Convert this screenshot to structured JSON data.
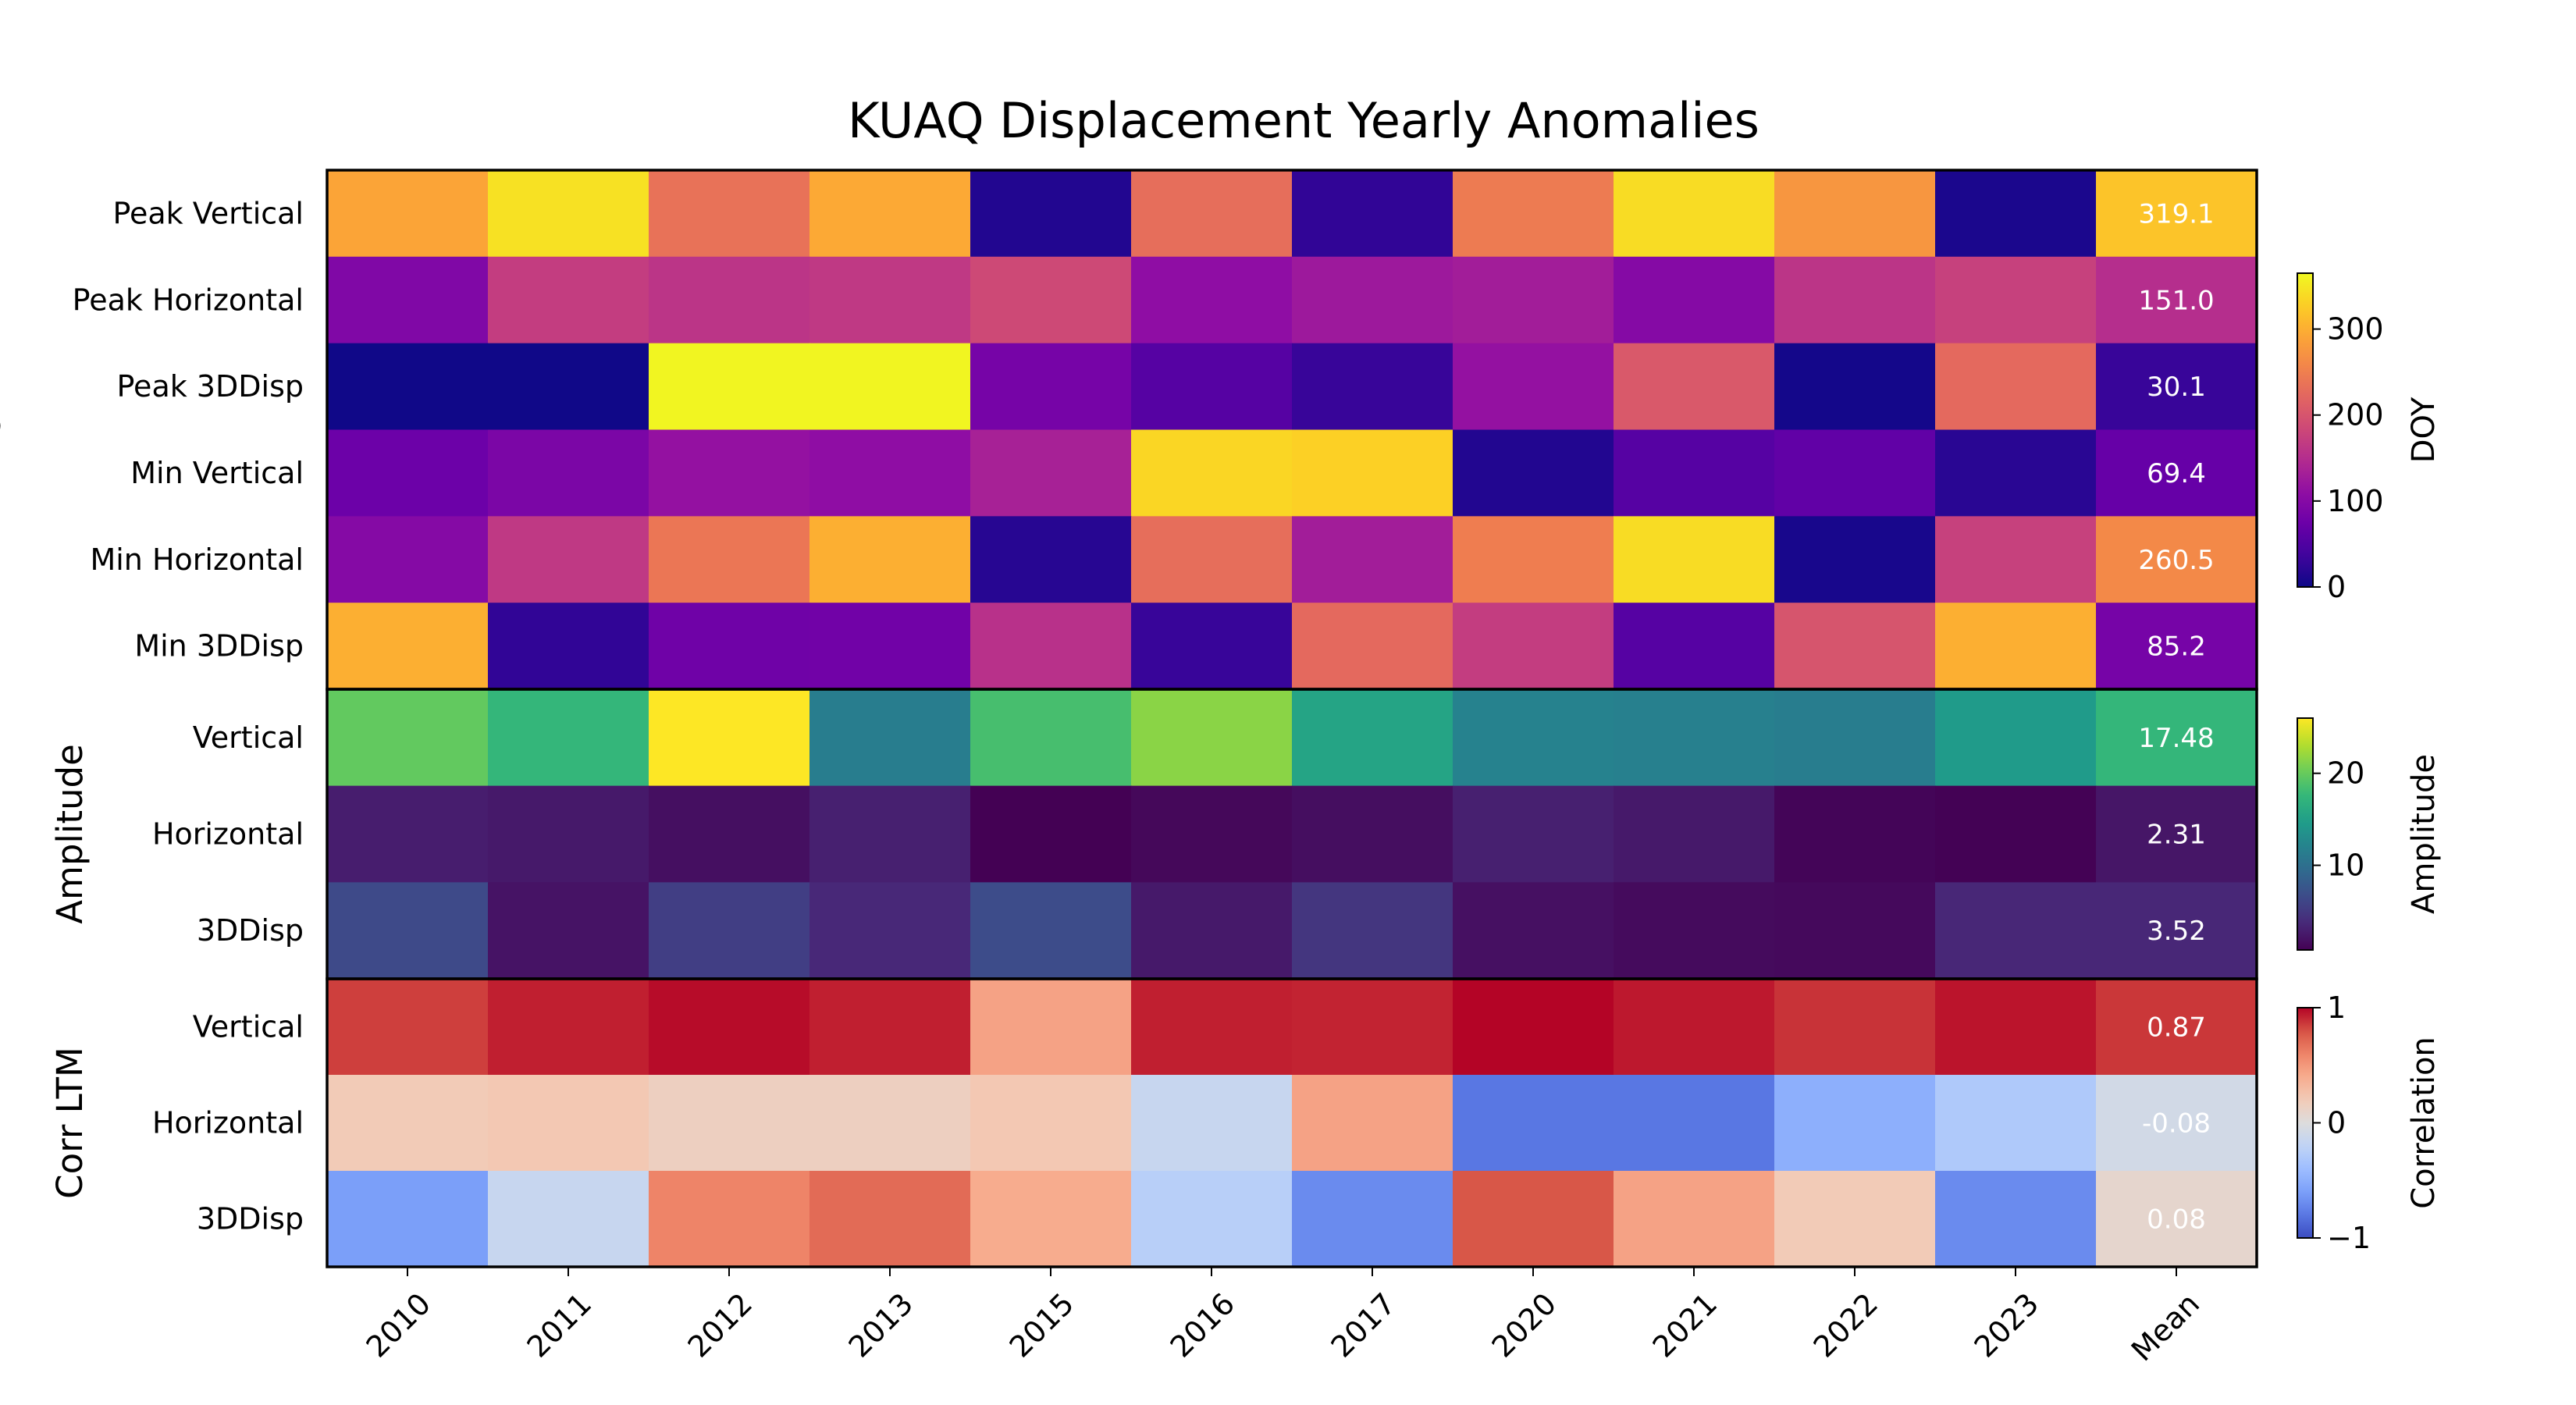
{
  "chart_data": {
    "type": "heatmap",
    "title": "KUAQ Displacement Yearly Anomalies",
    "columns": [
      "2010",
      "2011",
      "2012",
      "2013",
      "2015",
      "2016",
      "2017",
      "2020",
      "2021",
      "2022",
      "2023",
      "Mean"
    ],
    "panels": [
      {
        "group_label": "DOY",
        "colorbar_label": "DOY",
        "colormap": "plasma",
        "vmin": 0,
        "vmax": 365,
        "colorbar_ticks": [
          0,
          100,
          200,
          300
        ],
        "rows": [
          {
            "label": "Peak Vertical",
            "values": [
              290,
              345,
              235,
              295,
              15,
              230,
              25,
              245,
              340,
              275,
              10,
              319.1
            ],
            "mean_label": "319.1"
          },
          {
            "label": "Peak Horizontal",
            "values": [
              95,
              170,
              160,
              165,
              185,
              110,
              125,
              130,
              100,
              160,
              175,
              151.0
            ],
            "mean_label": "151.0"
          },
          {
            "label": "Peak 3DDisp",
            "values": [
              2,
              2,
              362,
              362,
              85,
              55,
              30,
              115,
              205,
              5,
              225,
              30.1
            ],
            "mean_label": "30.1"
          },
          {
            "label": "Min Vertical",
            "values": [
              75,
              90,
              115,
              110,
              135,
              335,
              330,
              15,
              55,
              65,
              20,
              69.4
            ],
            "mean_label": "69.4"
          },
          {
            "label": "Min Horizontal",
            "values": [
              100,
              165,
              240,
              300,
              18,
              230,
              130,
              248,
              340,
              8,
              175,
              260.5
            ],
            "mean_label": "260.5"
          },
          {
            "label": "Min 3DDisp",
            "values": [
              300,
              25,
              78,
              80,
              155,
              30,
              225,
              170,
              55,
              200,
              300,
              85.2
            ],
            "mean_label": "85.2"
          }
        ]
      },
      {
        "group_label": "Amplitude",
        "colorbar_label": "Amplitude",
        "colormap": "viridis",
        "vmin": 0.8,
        "vmax": 26,
        "colorbar_ticks": [
          10,
          20
        ],
        "rows": [
          {
            "label": "Vertical",
            "values": [
              19.8,
              17.5,
              26.0,
              11.5,
              18.5,
              21.5,
              15.5,
              12.0,
              11.8,
              11.5,
              14.5,
              17.48
            ],
            "mean_label": "17.48"
          },
          {
            "label": "Horizontal",
            "values": [
              2.8,
              2.5,
              1.8,
              3.0,
              0.8,
              1.3,
              1.7,
              3.0,
              2.5,
              1.1,
              0.9,
              2.31
            ],
            "mean_label": "2.31"
          },
          {
            "label": "3DDisp",
            "values": [
              6.5,
              2.1,
              5.5,
              3.6,
              6.7,
              2.5,
              4.8,
              1.9,
              1.5,
              1.4,
              3.5,
              3.52
            ],
            "mean_label": "3.52"
          }
        ]
      },
      {
        "group_label": "Corr LTM",
        "colorbar_label": "Correlation",
        "colormap": "coolwarm",
        "vmin": -1,
        "vmax": 1,
        "colorbar_ticks": [
          -1,
          0,
          1
        ],
        "rows": [
          {
            "label": "Vertical",
            "values": [
              0.85,
              0.93,
              0.98,
              0.93,
              0.45,
              0.93,
              0.92,
              1.0,
              0.95,
              0.88,
              0.96,
              0.87
            ],
            "mean_label": "0.87"
          },
          {
            "label": "Horizontal",
            "values": [
              0.2,
              0.22,
              0.15,
              0.15,
              0.22,
              -0.15,
              0.45,
              -0.8,
              -0.8,
              -0.5,
              -0.3,
              -0.08
            ],
            "mean_label": "-0.08"
          },
          {
            "label": "3DDisp",
            "values": [
              -0.6,
              -0.15,
              0.6,
              0.7,
              0.4,
              -0.25,
              -0.7,
              0.78,
              0.45,
              0.2,
              -0.7,
              0.08
            ],
            "mean_label": "0.08"
          }
        ]
      }
    ]
  }
}
